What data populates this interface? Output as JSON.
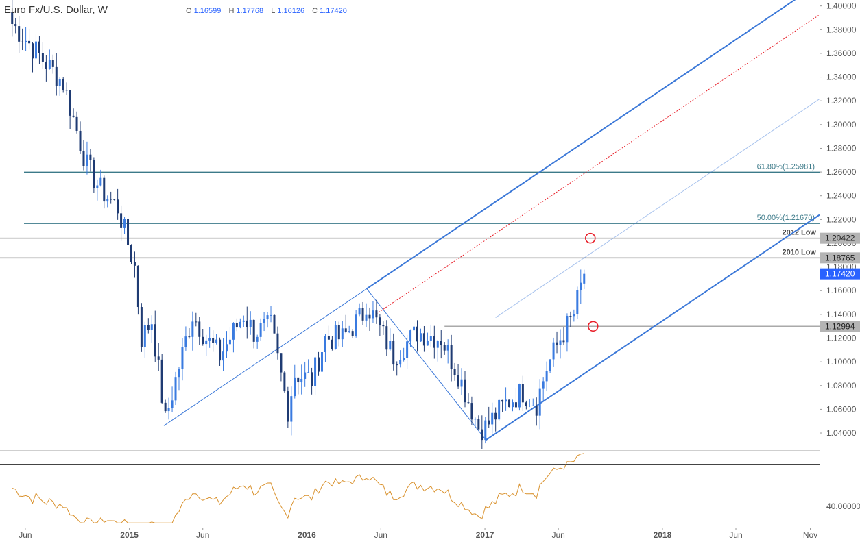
{
  "header": {
    "symbol": "Euro Fx/U.S. Dollar, W",
    "ohlc": [
      {
        "key": "O",
        "value": "1.16599"
      },
      {
        "key": "H",
        "value": "1.17768"
      },
      {
        "key": "L",
        "value": "1.16126"
      },
      {
        "key": "C",
        "value": "1.17420"
      }
    ]
  },
  "colors": {
    "bull": "#3a7be0",
    "bear": "#1f3b73",
    "channel": "#3b78d8",
    "fib_line": "#3c7a89",
    "level_line": "#aaaaaa",
    "rsi_line": "#d9912c",
    "marker": "#e8202a",
    "price_tag": "#2962ff"
  },
  "chart_data": {
    "type": "candlestick",
    "ylim": [
      1.025,
      1.405
    ],
    "price_axis_ticks": [
      "1.40000",
      "1.38000",
      "1.36000",
      "1.34000",
      "1.32000",
      "1.30000",
      "1.28000",
      "1.26000",
      "1.24000",
      "1.22000",
      "1.20000",
      "1.18000",
      "1.16000",
      "1.14000",
      "1.12000",
      "1.10000",
      "1.08000",
      "1.06000",
      "1.04000"
    ],
    "time_axis_ticks": [
      "Jun",
      "2015",
      "Jun",
      "2016",
      "Jun",
      "2017",
      "Jun",
      "2018",
      "Jun",
      "Nov"
    ],
    "time_axis_dates": [
      "2014-06-01",
      "2015-01-01",
      "2015-06-01",
      "2016-01-01",
      "2016-06-01",
      "2017-01-01",
      "2017-06-01",
      "2018-01-01",
      "2018-06-01",
      "2018-11-01"
    ],
    "last_price": {
      "value": 1.1742,
      "label": "1.17420"
    },
    "levels": [
      {
        "price": 1.25981,
        "label": "61.80%(1.25981)",
        "kind": "fib"
      },
      {
        "price": 1.2167,
        "label": "50.00%(1.21670)",
        "kind": "fib"
      },
      {
        "price": 1.20422,
        "label": "2012 Low",
        "tag": "1.20422",
        "kind": "level"
      },
      {
        "price": 1.18765,
        "label": "2010 Low",
        "tag": "1.18765",
        "kind": "level"
      },
      {
        "price": 1.12994,
        "tag": "1.12994",
        "kind": "level"
      }
    ],
    "pitchfork": {
      "pivot_a": {
        "date": "2015-03-13",
        "price": 1.0462
      },
      "pivot_b": {
        "date": "2016-05-03",
        "price": 1.1616
      },
      "pivot_c": {
        "date": "2017-01-03",
        "price": 1.0341
      }
    },
    "rsi": {
      "level_label": "40.00000",
      "upper_level": 70,
      "lower_level": 30,
      "ylim": [
        20,
        80
      ]
    },
    "anchors": [
      [
        "2014-05-05",
        1.385
      ],
      [
        "2014-07-07",
        1.355
      ],
      [
        "2014-08-18",
        1.335
      ],
      [
        "2014-10-06",
        1.265
      ],
      [
        "2014-11-03",
        1.245
      ],
      [
        "2014-12-08",
        1.23
      ],
      [
        "2015-01-12",
        1.18
      ],
      [
        "2015-01-26",
        1.12
      ],
      [
        "2015-02-16",
        1.135
      ],
      [
        "2015-03-16",
        1.05
      ],
      [
        "2015-04-06",
        1.085
      ],
      [
        "2015-05-11",
        1.14
      ],
      [
        "2015-06-08",
        1.12
      ],
      [
        "2015-07-06",
        1.105
      ],
      [
        "2015-08-24",
        1.14
      ],
      [
        "2015-09-14",
        1.125
      ],
      [
        "2015-10-19",
        1.13
      ],
      [
        "2015-11-23",
        1.06
      ],
      [
        "2015-12-07",
        1.09
      ],
      [
        "2016-01-11",
        1.085
      ],
      [
        "2016-02-08",
        1.12
      ],
      [
        "2016-03-14",
        1.12
      ],
      [
        "2016-04-25",
        1.14
      ],
      [
        "2016-05-02",
        1.15
      ],
      [
        "2016-06-27",
        1.105
      ],
      [
        "2016-08-15",
        1.125
      ],
      [
        "2016-10-03",
        1.12
      ],
      [
        "2016-11-07",
        1.09
      ],
      [
        "2016-12-19",
        1.045
      ],
      [
        "2017-01-02",
        1.045
      ],
      [
        "2017-02-13",
        1.065
      ],
      [
        "2017-03-20",
        1.075
      ],
      [
        "2017-04-17",
        1.065
      ],
      [
        "2017-05-08",
        1.095
      ],
      [
        "2017-06-05",
        1.12
      ],
      [
        "2017-07-03",
        1.14
      ],
      [
        "2017-07-24",
        1.1742
      ]
    ]
  }
}
